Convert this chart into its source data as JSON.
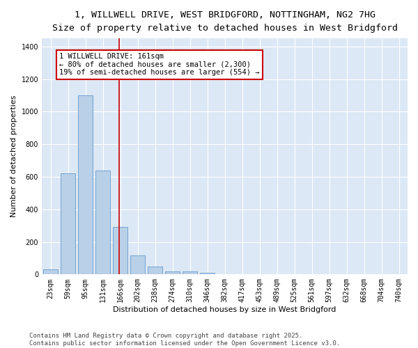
{
  "title_line1": "1, WILLWELL DRIVE, WEST BRIDGFORD, NOTTINGHAM, NG2 7HG",
  "title_line2": "Size of property relative to detached houses in West Bridgford",
  "xlabel": "Distribution of detached houses by size in West Bridgford",
  "ylabel": "Number of detached properties",
  "categories": [
    "23sqm",
    "59sqm",
    "95sqm",
    "131sqm",
    "166sqm",
    "202sqm",
    "238sqm",
    "274sqm",
    "310sqm",
    "346sqm",
    "382sqm",
    "417sqm",
    "453sqm",
    "489sqm",
    "525sqm",
    "561sqm",
    "597sqm",
    "632sqm",
    "668sqm",
    "704sqm",
    "740sqm"
  ],
  "values": [
    30,
    620,
    1100,
    640,
    290,
    115,
    47,
    20,
    20,
    10,
    0,
    0,
    0,
    0,
    0,
    0,
    0,
    0,
    0,
    0,
    0
  ],
  "bar_color": "#b8d0e8",
  "bar_edge_color": "#6699cc",
  "vline_color": "#cc0000",
  "annotation_text": "1 WILLWELL DRIVE: 161sqm\n← 80% of detached houses are smaller (2,300)\n19% of semi-detached houses are larger (554) →",
  "annotation_box_color": "#ffffff",
  "annotation_box_edge": "#cc0000",
  "ylim": [
    0,
    1450
  ],
  "yticks": [
    0,
    200,
    400,
    600,
    800,
    1000,
    1200,
    1400
  ],
  "bg_color": "#dce8f5",
  "footer_line1": "Contains HM Land Registry data © Crown copyright and database right 2025.",
  "footer_line2": "Contains public sector information licensed under the Open Government Licence v3.0.",
  "title_fontsize": 9.5,
  "subtitle_fontsize": 8.5,
  "axis_label_fontsize": 8,
  "tick_fontsize": 7,
  "annotation_fontsize": 7.5,
  "footer_fontsize": 6.5
}
